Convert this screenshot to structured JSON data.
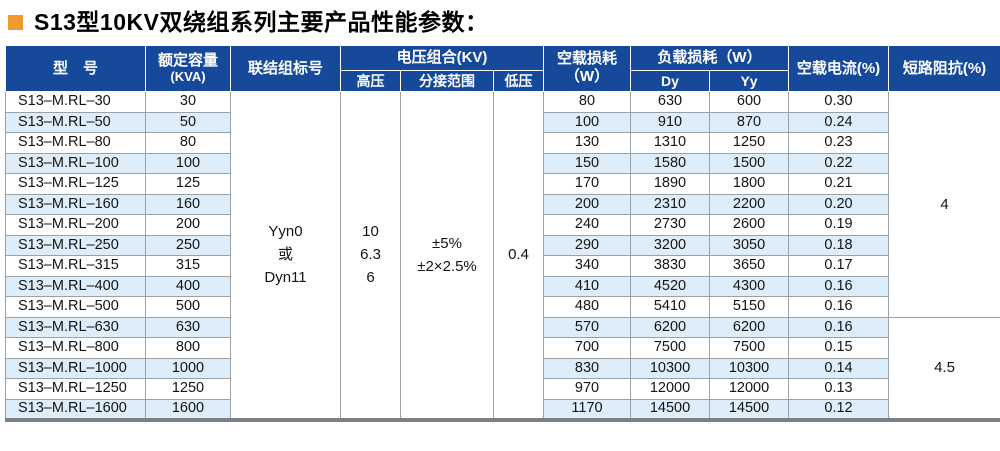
{
  "title": {
    "text": "S13型10KV双绕组系列主要产品性能参数："
  },
  "colors": {
    "header_bg": "#17499b",
    "row_stripe": "#ddeefa",
    "title_bullet": "#f09a2c",
    "grid_line": "#99a1a9",
    "bottom_bar": "#7d8084"
  },
  "table": {
    "header": {
      "model": "型　号",
      "capacity_line1": "额定容量",
      "capacity_line2": "(KVA)",
      "connection": "联结组标号",
      "voltage_group": "电压组合(KV)",
      "hv": "高压",
      "tap_range": "分接范围",
      "lv": "低压",
      "no_load_loss_line1": "空载损耗",
      "no_load_loss_line2": "（W）",
      "load_loss": "负载损耗（W）",
      "dy": "Dy",
      "yy": "Yy",
      "no_load_current": "空载电流(%)",
      "impedance": "短路阻抗(%)"
    },
    "merged": {
      "connection_lines": [
        "Yyn0",
        "或",
        "Dyn11"
      ],
      "hv_lines": [
        "10",
        "6.3",
        "6"
      ],
      "tap_lines": [
        "±5%",
        "±2×2.5%"
      ],
      "lv_lines": [
        "0.4"
      ],
      "impedance_groups": [
        {
          "value": "4",
          "rows": 11
        },
        {
          "value": "4.5",
          "rows": 5
        }
      ]
    },
    "rows": [
      {
        "model": "S13–M.RL–30",
        "rated_capacity_kva": "30",
        "no_load_loss_w": "80",
        "load_loss_dy_w": "630",
        "load_loss_yy_w": "600",
        "no_load_current_pct": "0.30"
      },
      {
        "model": "S13–M.RL–50",
        "rated_capacity_kva": "50",
        "no_load_loss_w": "100",
        "load_loss_dy_w": "910",
        "load_loss_yy_w": "870",
        "no_load_current_pct": "0.24"
      },
      {
        "model": "S13–M.RL–80",
        "rated_capacity_kva": "80",
        "no_load_loss_w": "130",
        "load_loss_dy_w": "1310",
        "load_loss_yy_w": "1250",
        "no_load_current_pct": "0.23"
      },
      {
        "model": "S13–M.RL–100",
        "rated_capacity_kva": "100",
        "no_load_loss_w": "150",
        "load_loss_dy_w": "1580",
        "load_loss_yy_w": "1500",
        "no_load_current_pct": "0.22"
      },
      {
        "model": "S13–M.RL–125",
        "rated_capacity_kva": "125",
        "no_load_loss_w": "170",
        "load_loss_dy_w": "1890",
        "load_loss_yy_w": "1800",
        "no_load_current_pct": "0.21"
      },
      {
        "model": "S13–M.RL–160",
        "rated_capacity_kva": "160",
        "no_load_loss_w": "200",
        "load_loss_dy_w": "2310",
        "load_loss_yy_w": "2200",
        "no_load_current_pct": "0.20"
      },
      {
        "model": "S13–M.RL–200",
        "rated_capacity_kva": "200",
        "no_load_loss_w": "240",
        "load_loss_dy_w": "2730",
        "load_loss_yy_w": "2600",
        "no_load_current_pct": "0.19"
      },
      {
        "model": "S13–M.RL–250",
        "rated_capacity_kva": "250",
        "no_load_loss_w": "290",
        "load_loss_dy_w": "3200",
        "load_loss_yy_w": "3050",
        "no_load_current_pct": "0.18"
      },
      {
        "model": "S13–M.RL–315",
        "rated_capacity_kva": "315",
        "no_load_loss_w": "340",
        "load_loss_dy_w": "3830",
        "load_loss_yy_w": "3650",
        "no_load_current_pct": "0.17"
      },
      {
        "model": "S13–M.RL–400",
        "rated_capacity_kva": "400",
        "no_load_loss_w": "410",
        "load_loss_dy_w": "4520",
        "load_loss_yy_w": "4300",
        "no_load_current_pct": "0.16"
      },
      {
        "model": "S13–M.RL–500",
        "rated_capacity_kva": "500",
        "no_load_loss_w": "480",
        "load_loss_dy_w": "5410",
        "load_loss_yy_w": "5150",
        "no_load_current_pct": "0.16"
      },
      {
        "model": "S13–M.RL–630",
        "rated_capacity_kva": "630",
        "no_load_loss_w": "570",
        "load_loss_dy_w": "6200",
        "load_loss_yy_w": "6200",
        "no_load_current_pct": "0.16"
      },
      {
        "model": "S13–M.RL–800",
        "rated_capacity_kva": "800",
        "no_load_loss_w": "700",
        "load_loss_dy_w": "7500",
        "load_loss_yy_w": "7500",
        "no_load_current_pct": "0.15"
      },
      {
        "model": "S13–M.RL–1000",
        "rated_capacity_kva": "1000",
        "no_load_loss_w": "830",
        "load_loss_dy_w": "10300",
        "load_loss_yy_w": "10300",
        "no_load_current_pct": "0.14"
      },
      {
        "model": "S13–M.RL–1250",
        "rated_capacity_kva": "1250",
        "no_load_loss_w": "970",
        "load_loss_dy_w": "12000",
        "load_loss_yy_w": "12000",
        "no_load_current_pct": "0.13"
      },
      {
        "model": "S13–M.RL–1600",
        "rated_capacity_kva": "1600",
        "no_load_loss_w": "1170",
        "load_loss_dy_w": "14500",
        "load_loss_yy_w": "14500",
        "no_load_current_pct": "0.12"
      }
    ]
  }
}
